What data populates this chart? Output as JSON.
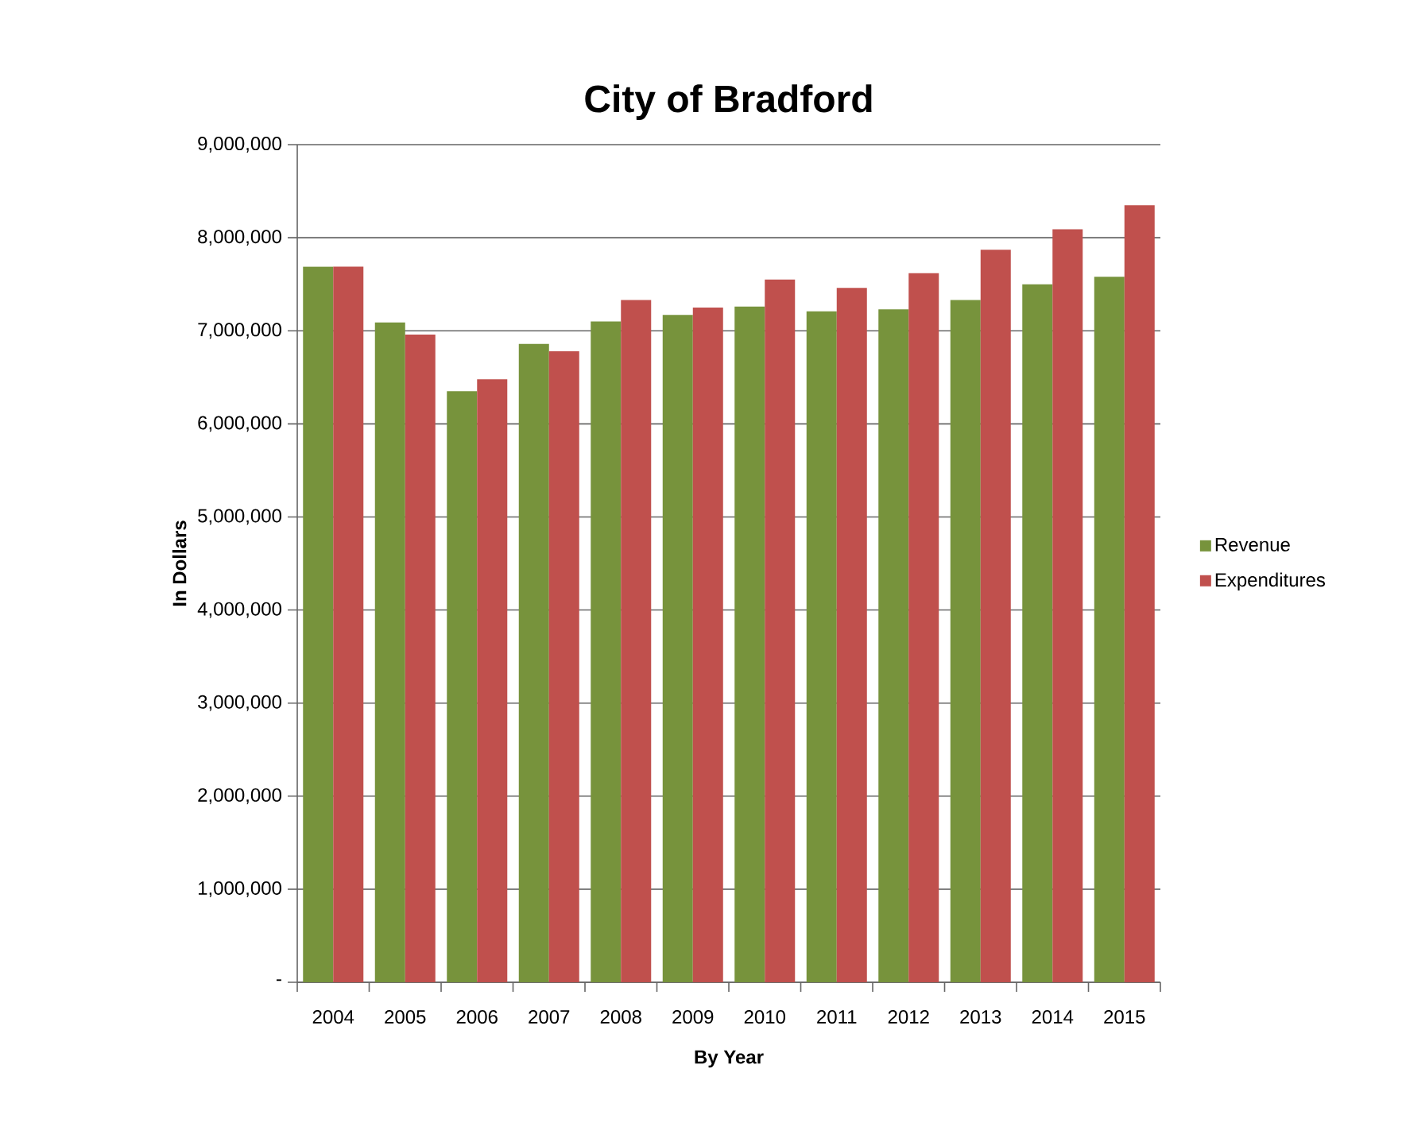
{
  "chart_data": {
    "type": "bar",
    "title": "City of Bradford",
    "xlabel": "By Year",
    "ylabel": "In Dollars",
    "categories": [
      "2004",
      "2005",
      "2006",
      "2007",
      "2008",
      "2009",
      "2010",
      "2011",
      "2012",
      "2013",
      "2014",
      "2015"
    ],
    "series": [
      {
        "name": "Revenue",
        "color": "#77933c",
        "values": [
          7690000,
          7090000,
          6350000,
          6860000,
          7100000,
          7170000,
          7260000,
          7210000,
          7230000,
          7330000,
          7500000,
          7580000
        ]
      },
      {
        "name": "Expenditures",
        "color": "#c0504d",
        "values": [
          7690000,
          6960000,
          6480000,
          6780000,
          7330000,
          7250000,
          7550000,
          7460000,
          7620000,
          7870000,
          8090000,
          8350000
        ]
      }
    ],
    "ylim": [
      0,
      9000000
    ],
    "yticks": [
      {
        "value": 0,
        "label": "-"
      },
      {
        "value": 1000000,
        "label": "1,000,000"
      },
      {
        "value": 2000000,
        "label": "2,000,000"
      },
      {
        "value": 3000000,
        "label": "3,000,000"
      },
      {
        "value": 4000000,
        "label": "4,000,000"
      },
      {
        "value": 5000000,
        "label": "5,000,000"
      },
      {
        "value": 6000000,
        "label": "6,000,000"
      },
      {
        "value": 7000000,
        "label": "7,000,000"
      },
      {
        "value": 8000000,
        "label": "8,000,000"
      },
      {
        "value": 9000000,
        "label": "9,000,000"
      }
    ],
    "grid": "y",
    "legend": "right"
  }
}
